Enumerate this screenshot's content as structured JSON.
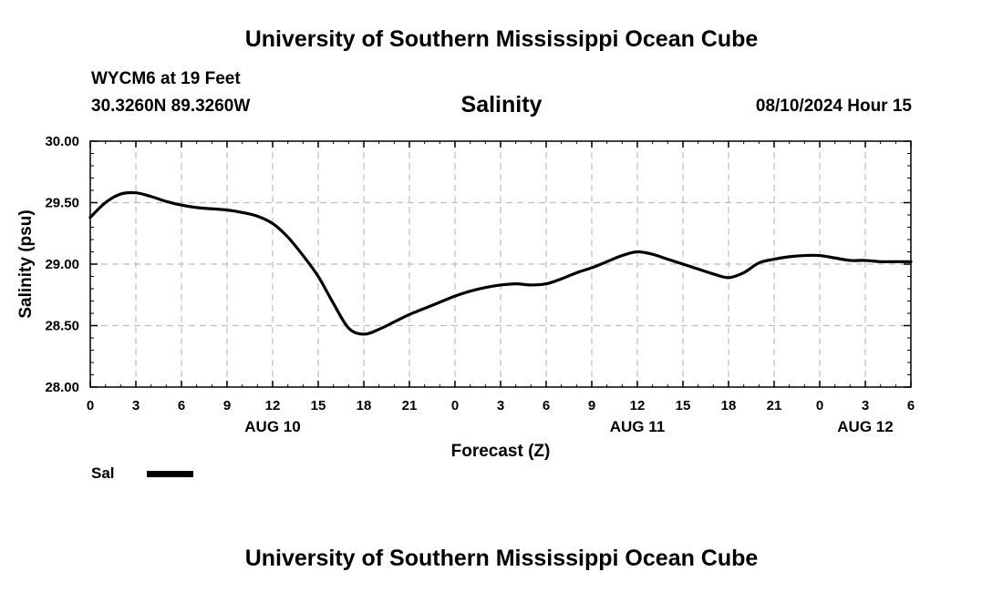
{
  "header": {
    "title_top": "University of Southern Mississippi Ocean Cube",
    "station": "WYCM6 at 19 Feet",
    "coords": "30.3260N  89.3260W",
    "datetime": "08/10/2024 Hour 15",
    "title_bottom": "University of Southern Mississippi Ocean Cube"
  },
  "legend": {
    "label": "Sal",
    "color": "#000000"
  },
  "chart_data": {
    "type": "line",
    "title": "Salinity",
    "xlabel": "Forecast (Z)",
    "ylabel": "Salinity (psu)",
    "x_unit": "hours since 08/10 00Z",
    "xlim": [
      0,
      54
    ],
    "ylim": [
      28.0,
      30.0
    ],
    "yticks": [
      "28.00",
      "28.50",
      "29.00",
      "29.50",
      "30.00"
    ],
    "yticks_values": [
      28.0,
      28.5,
      29.0,
      29.5,
      30.0
    ],
    "xticks_values": [
      0,
      3,
      6,
      9,
      12,
      15,
      18,
      21,
      24,
      27,
      30,
      33,
      36,
      39,
      42,
      45,
      48,
      51,
      54
    ],
    "xticks_labels": [
      "0",
      "3",
      "6",
      "9",
      "12",
      "15",
      "18",
      "21",
      "0",
      "3",
      "6",
      "9",
      "12",
      "15",
      "18",
      "21",
      "0",
      "3",
      "6"
    ],
    "date_labels": [
      {
        "label": "AUG 10",
        "x": 12
      },
      {
        "label": "AUG 11",
        "x": 36
      },
      {
        "label": "AUG 12",
        "x": 51
      }
    ],
    "grid": true,
    "legend_position": "bottom-left",
    "series": [
      {
        "name": "Sal",
        "color": "#000000",
        "x": [
          0,
          1,
          2,
          3,
          4,
          5,
          6,
          7,
          8,
          9,
          10,
          11,
          12,
          13,
          14,
          15,
          16,
          17,
          18,
          19,
          20,
          21,
          22,
          23,
          24,
          25,
          26,
          27,
          28,
          29,
          30,
          31,
          32,
          33,
          34,
          35,
          36,
          37,
          38,
          39,
          40,
          41,
          42,
          43,
          44,
          45,
          46,
          47,
          48,
          49,
          50,
          51,
          52,
          53,
          54
        ],
        "values": [
          29.38,
          29.5,
          29.57,
          29.58,
          29.55,
          29.51,
          29.48,
          29.46,
          29.45,
          29.44,
          29.42,
          29.39,
          29.33,
          29.22,
          29.07,
          28.9,
          28.68,
          28.48,
          28.43,
          28.47,
          28.53,
          28.59,
          28.64,
          28.69,
          28.74,
          28.78,
          28.81,
          28.83,
          28.84,
          28.83,
          28.84,
          28.88,
          28.93,
          28.97,
          29.02,
          29.07,
          29.1,
          29.08,
          29.04,
          29.0,
          28.96,
          28.92,
          28.89,
          28.93,
          29.01,
          29.04,
          29.06,
          29.07,
          29.07,
          29.05,
          29.03,
          29.03,
          29.02,
          29.02,
          29.02
        ]
      }
    ]
  }
}
